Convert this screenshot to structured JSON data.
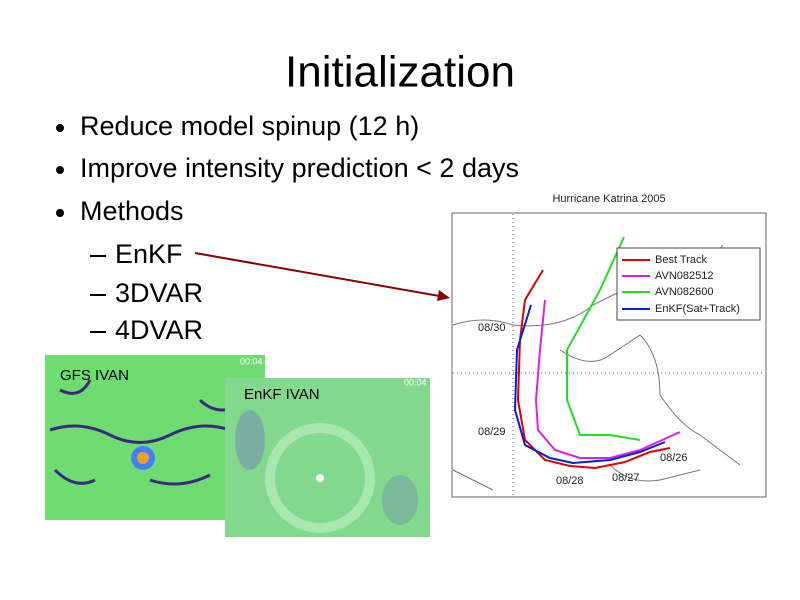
{
  "slide": {
    "title": "Initialization",
    "bullets": [
      "Reduce model spinup (12 h)",
      "Improve intensity prediction < 2 days",
      "Methods"
    ],
    "sub_bullets": [
      "EnKF",
      "3DVAR",
      "4DVAR"
    ],
    "images": [
      {
        "label": "GFS IVAN",
        "time": "00:04"
      },
      {
        "label": "EnKF IVAN",
        "time": "00:04"
      }
    ],
    "map": {
      "title": "Hurricane Katrina 2005",
      "legend": [
        "Best Track",
        "AVN082512",
        "AVN082600",
        "EnKF(Sat+Track)"
      ],
      "dates": [
        "08/30",
        "08/29",
        "08/28",
        "08/27",
        "08/26"
      ]
    }
  }
}
